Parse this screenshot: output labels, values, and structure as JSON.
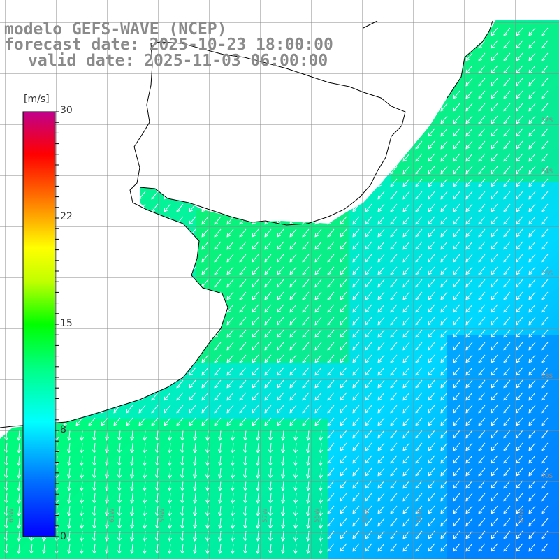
{
  "title": {
    "line1": "modelo GEFS-WAVE (NCEP)",
    "line2": "forecast date: 2025-10-23 18:00:00",
    "line3": "valid date: 2025-11-03 06:00:00"
  },
  "colorbar": {
    "unit": "[m/s]",
    "ticks": [
      {
        "label": "30",
        "value": 30
      },
      {
        "label": "22",
        "value": 22
      },
      {
        "label": "15",
        "value": 15
      },
      {
        "label": "8",
        "value": 8
      },
      {
        "label": "0",
        "value": 0
      }
    ],
    "colors": [
      "#0000ff",
      "#0070ff",
      "#00c8ff",
      "#00ffff",
      "#00ff80",
      "#00ff00",
      "#80ff00",
      "#ffff00",
      "#ffa000",
      "#ff6000",
      "#ff0000",
      "#c00050",
      "#c0008c"
    ]
  },
  "map": {
    "lon_labels": [
      "63W",
      "61W",
      "59W",
      "57W",
      "55W",
      "53W",
      "51W",
      "49W"
    ],
    "lat_labels": [
      "32S",
      "34S",
      "36S",
      "38S",
      "40S"
    ],
    "land_color": "#ffffff",
    "grid_color": "#888888",
    "arrow_color": "#ffffff",
    "coast_color": "#000000"
  }
}
